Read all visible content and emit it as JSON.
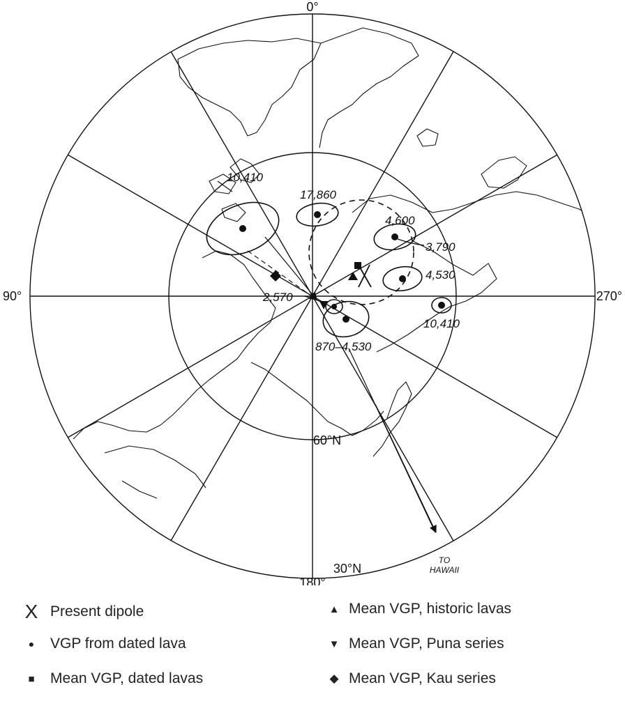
{
  "map": {
    "projection": "polar",
    "longitude_labels": {
      "top": "0°",
      "left": "90°",
      "right": "270°",
      "bottom": "180°"
    },
    "latitude_labels": {
      "inner": "60°N",
      "outer": "30°N"
    },
    "hawaii_label": {
      "line1": "TO",
      "line2": "HAWAII"
    },
    "pole_ages": {
      "a": "10,410",
      "b": "17,860",
      "c": "4,600",
      "d": "3,790",
      "e": "4,530",
      "f": "10,410",
      "g": "2,570",
      "h": "870–4,530"
    }
  },
  "legend": {
    "items": [
      {
        "symbol": "X",
        "label": "Present dipole"
      },
      {
        "symbol": "●",
        "label": "VGP from dated lava"
      },
      {
        "symbol": "■",
        "label": "Mean VGP, dated lavas"
      },
      {
        "symbol": "▲",
        "label": "Mean VGP, historic lavas"
      },
      {
        "symbol": "▼",
        "label": "Mean VGP, Puna series"
      },
      {
        "symbol": "◆",
        "label": "Mean VGP, Kau series"
      }
    ]
  }
}
